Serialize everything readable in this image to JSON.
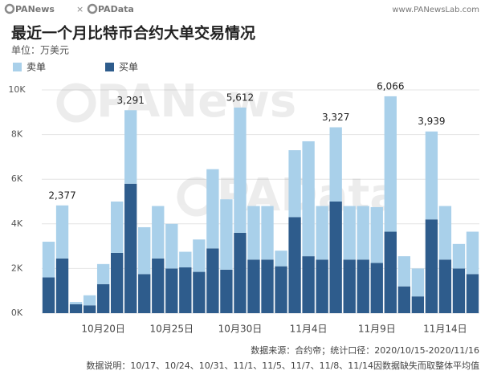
{
  "header": {
    "logos": [
      "PANews",
      "×",
      "PAData"
    ],
    "site": "www.PANewsLab.com"
  },
  "watermarks": [
    "PANews",
    "PAData"
  ],
  "chart_data": {
    "type": "stacked_bar",
    "title": "最近一个月比特币合约大单交易情况",
    "subtitle": "单位：万美元",
    "categories": [
      null,
      null,
      null,
      null,
      "10月20日",
      null,
      null,
      null,
      null,
      "10月25日",
      null,
      null,
      null,
      null,
      "10月30日",
      null,
      null,
      null,
      null,
      "11月4日",
      null,
      null,
      null,
      null,
      "11月9日",
      null,
      null,
      null,
      null,
      "11月14日",
      null,
      null
    ],
    "series": [
      {
        "name": "卖单",
        "color": "#a9d0ea",
        "values": [
          1600,
          2377,
          100,
          450,
          900,
          2300,
          3291,
          2100,
          2350,
          2000,
          700,
          1450,
          3550,
          3150,
          5612,
          2400,
          2400,
          700,
          3000,
          5150,
          2400,
          3327,
          2400,
          2400,
          2500,
          6066,
          1350,
          1250,
          3939,
          2400,
          1100,
          1900
        ],
        "value_labels": [
          null,
          "2,377",
          null,
          null,
          null,
          null,
          "3,291",
          null,
          null,
          null,
          null,
          null,
          null,
          null,
          "5,612",
          null,
          null,
          null,
          null,
          null,
          null,
          "3,327",
          null,
          null,
          null,
          "6,066",
          null,
          null,
          "3,939",
          null,
          null,
          null
        ]
      },
      {
        "name": "买单",
        "color": "#2e5c8c",
        "values": [
          1600,
          2450,
          400,
          350,
          1300,
          2700,
          5800,
          1750,
          2450,
          2000,
          2050,
          1850,
          2900,
          1950,
          3600,
          2400,
          2400,
          2100,
          4300,
          2550,
          2400,
          5000,
          2400,
          2400,
          2250,
          3650,
          1200,
          750,
          4200,
          2400,
          2000,
          1750
        ]
      }
    ],
    "ylim": [
      0,
      10000
    ],
    "yticks": [
      {
        "value": 0,
        "label": "0K"
      },
      {
        "value": 2000,
        "label": "2K"
      },
      {
        "value": 4000,
        "label": "4K"
      },
      {
        "value": 6000,
        "label": "6K"
      },
      {
        "value": 8000,
        "label": "8K"
      },
      {
        "value": 10000,
        "label": "10K"
      }
    ],
    "grid": true,
    "source": "数据来源：合约帝；统计口径：2020/10/15-2020/11/16",
    "note": "数据说明：10/17、10/24、10/31、11/1、11/5、11/7、11/8、11/14因数据缺失而取整体平均值"
  }
}
